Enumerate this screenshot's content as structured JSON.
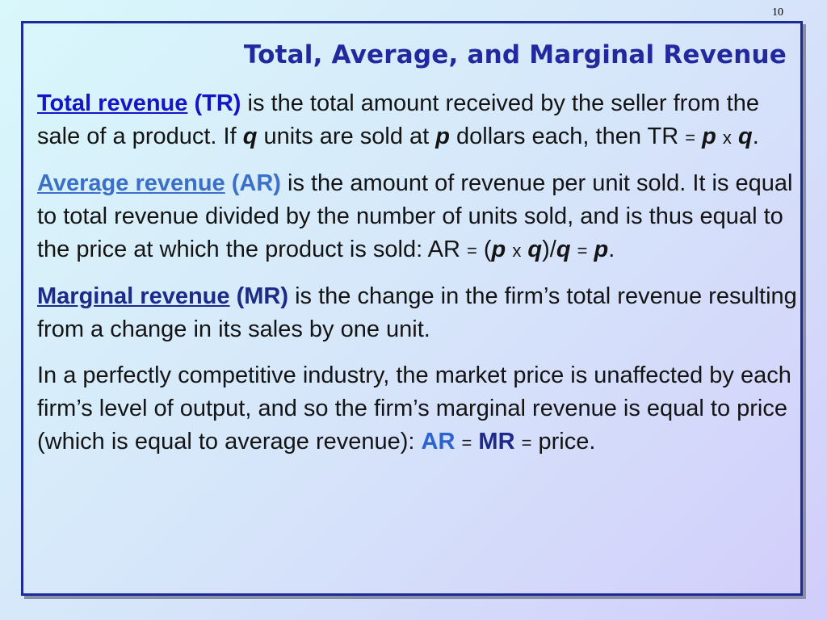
{
  "slide_number": "10",
  "title": "Total, Average, and Marginal Revenue",
  "tr": {
    "term": "Total revenue",
    "abbr": "(TR)",
    "text1": " is the total amount received by the seller from the sale of a product. If ",
    "q": "q",
    "text2": " units are sold at ",
    "p": "p",
    "text3": " dollars each, then TR ",
    "eq": "=",
    "x": "x",
    "end": "."
  },
  "ar": {
    "term": "Average revenue",
    "abbr": "(AR)",
    "text1": " is the amount of revenue per unit sold. It is equal to total revenue divided by the number of units sold, and is thus equal to the price at which the product is sold:    AR ",
    "eq": "=",
    "open": "(",
    "p": "p",
    "x": "x",
    "q": "q",
    "close_div": ")/",
    "q2": "q",
    "eq2": "=",
    "p2": "p",
    "end": "."
  },
  "mr": {
    "term": "Marginal revenue",
    "abbr": "(MR)",
    "text1": " is the change in the firm’s total revenue resulting from a change in its sales by one unit."
  },
  "pc": {
    "text1": "In a perfectly competitive industry, the market price is unaffected by each firm’s level of output, and so the firm’s marginal revenue is equal to price (which is equal to average revenue): ",
    "ar": "AR",
    "eq": "=",
    "mr": "MR",
    "eq2": "=",
    "price": "price."
  },
  "colors": {
    "title": "#22289e",
    "frame": "#1e2a96",
    "tr_term": "#1515c8",
    "ar_term": "#3b6fc8",
    "mr_term": "#1c2a8a"
  }
}
